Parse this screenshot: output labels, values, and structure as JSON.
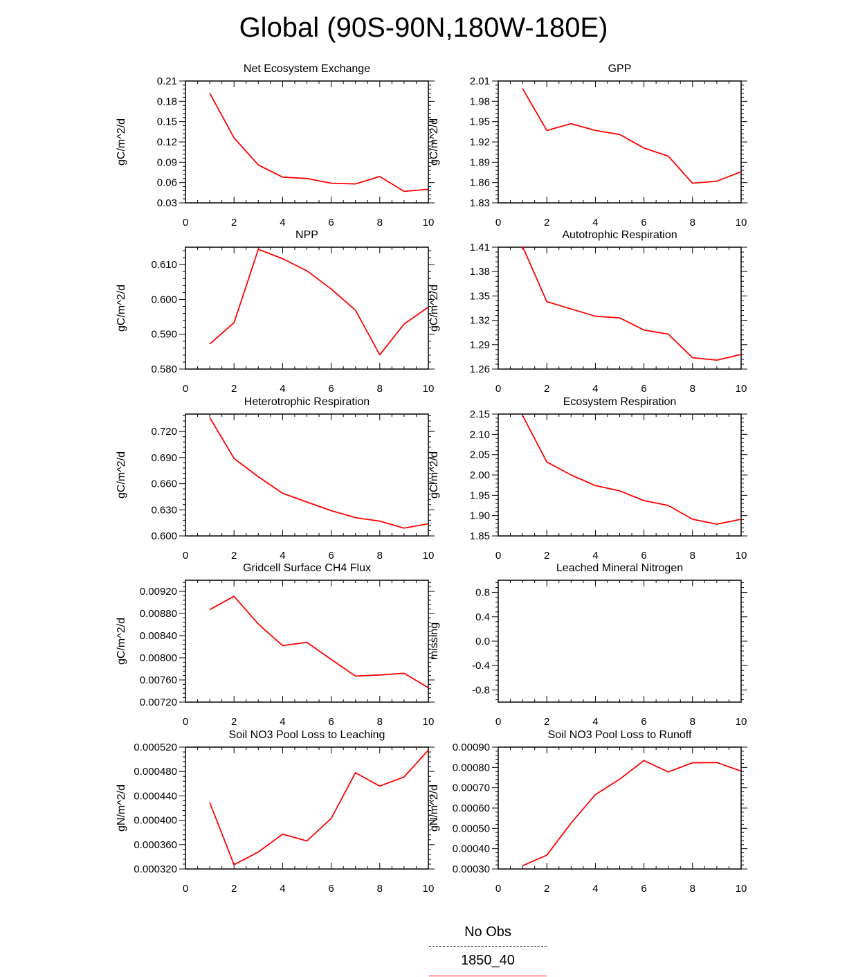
{
  "title": "Global (90S-90N,180W-180E)",
  "legend": {
    "entries": [
      {
        "label": "No Obs",
        "style": "dashed",
        "color": "#000000"
      },
      {
        "label": "1850_40",
        "style": "solid",
        "color": "#ff0000"
      }
    ]
  },
  "colors": {
    "series": "#ff0000",
    "axis": "#000000"
  },
  "chart_data": [
    {
      "type": "line",
      "title": "Net Ecosystem Exchange",
      "ylabel": "gC/m^2/d",
      "xlim": [
        0,
        10
      ],
      "xticks": [
        "0",
        "2",
        "4",
        "6",
        "8",
        "10"
      ],
      "ylim": [
        0.03,
        0.21
      ],
      "yticks": [
        "0.03",
        "0.06",
        "0.09",
        "0.12",
        "0.15",
        "0.18",
        "0.21"
      ],
      "x": [
        1,
        2,
        3,
        4,
        5,
        6,
        7,
        8,
        9,
        10
      ],
      "y": [
        0.192,
        0.126,
        0.086,
        0.068,
        0.066,
        0.059,
        0.058,
        0.069,
        0.047,
        0.05
      ]
    },
    {
      "type": "line",
      "title": "GPP",
      "ylabel": "gC/m^2/d",
      "xlim": [
        0,
        10
      ],
      "xticks": [
        "0",
        "2",
        "4",
        "6",
        "8",
        "10"
      ],
      "ylim": [
        1.83,
        2.01
      ],
      "yticks": [
        "1.83",
        "1.86",
        "1.89",
        "1.92",
        "1.95",
        "1.98",
        "2.01"
      ],
      "x": [
        1,
        2,
        3,
        4,
        5,
        6,
        7,
        8,
        9,
        10
      ],
      "y": [
        1.999,
        1.937,
        1.947,
        1.937,
        1.931,
        1.911,
        1.899,
        1.859,
        1.862,
        1.876
      ]
    },
    {
      "type": "line",
      "title": "NPP",
      "ylabel": "gC/m^2/d",
      "xlim": [
        0,
        10
      ],
      "xticks": [
        "0",
        "2",
        "4",
        "6",
        "8",
        "10"
      ],
      "ylim": [
        0.58,
        0.615
      ],
      "yticks": [
        "0.580",
        "0.590",
        "0.600",
        "0.610"
      ],
      "x": [
        1,
        2,
        3,
        4,
        5,
        6,
        7,
        8,
        9,
        10
      ],
      "y": [
        0.5872,
        0.5933,
        0.6144,
        0.6117,
        0.6082,
        0.603,
        0.5969,
        0.5841,
        0.5929,
        0.5978
      ]
    },
    {
      "type": "line",
      "title": "Autotrophic Respiration",
      "ylabel": "gC/m^2/d",
      "xlim": [
        0,
        10
      ],
      "xticks": [
        "0",
        "2",
        "4",
        "6",
        "8",
        "10"
      ],
      "ylim": [
        1.26,
        1.41
      ],
      "yticks": [
        "1.26",
        "1.29",
        "1.32",
        "1.35",
        "1.38",
        "1.41"
      ],
      "x": [
        1,
        2,
        3,
        4,
        5,
        6,
        7,
        8,
        9,
        10
      ],
      "y": [
        1.411,
        1.343,
        1.334,
        1.325,
        1.323,
        1.308,
        1.303,
        1.274,
        1.271,
        1.278
      ]
    },
    {
      "type": "line",
      "title": "Heterotrophic Respiration",
      "ylabel": "gC/m^2/d",
      "xlim": [
        0,
        10
      ],
      "xticks": [
        "0",
        "2",
        "4",
        "6",
        "8",
        "10"
      ],
      "ylim": [
        0.6,
        0.74
      ],
      "yticks": [
        "0.600",
        "0.630",
        "0.660",
        "0.690",
        "0.720"
      ],
      "x": [
        1,
        2,
        3,
        4,
        5,
        6,
        7,
        8,
        9,
        10
      ],
      "y": [
        0.736,
        0.689,
        0.668,
        0.649,
        0.639,
        0.629,
        0.621,
        0.617,
        0.609,
        0.614
      ]
    },
    {
      "type": "line",
      "title": "Ecosystem Respiration",
      "ylabel": "gC/m^2/d",
      "xlim": [
        0,
        10
      ],
      "xticks": [
        "0",
        "2",
        "4",
        "6",
        "8",
        "10"
      ],
      "ylim": [
        1.85,
        2.15
      ],
      "yticks": [
        "1.85",
        "1.90",
        "1.95",
        "2.00",
        "2.05",
        "2.10",
        "2.15"
      ],
      "x": [
        1,
        2,
        3,
        4,
        5,
        6,
        7,
        8,
        9,
        10
      ],
      "y": [
        2.147,
        2.032,
        2.0,
        1.974,
        1.961,
        1.937,
        1.925,
        1.891,
        1.879,
        1.891
      ]
    },
    {
      "type": "line",
      "title": "Gridcell Surface CH4 Flux",
      "ylabel": "gC/m^2/d",
      "xlim": [
        0,
        10
      ],
      "xticks": [
        "0",
        "2",
        "4",
        "6",
        "8",
        "10"
      ],
      "ylim": [
        0.0072,
        0.0094
      ],
      "yticks": [
        "0.00720",
        "0.00760",
        "0.00800",
        "0.00840",
        "0.00880",
        "0.00920"
      ],
      "x": [
        1,
        2,
        3,
        4,
        5,
        6,
        7,
        8,
        9,
        10
      ],
      "y": [
        0.00887,
        0.00911,
        0.00861,
        0.00822,
        0.00828,
        0.00797,
        0.00767,
        0.00769,
        0.00772,
        0.00746
      ]
    },
    {
      "type": "line",
      "title": "Leached Mineral Nitrogen",
      "ylabel": "missing",
      "xlim": [
        0,
        10
      ],
      "xticks": [
        "0",
        "2",
        "4",
        "6",
        "8",
        "10"
      ],
      "ylim": [
        -1.0,
        1.0
      ],
      "yticks": [
        "-0.8",
        "-0.4",
        "0.0",
        "0.4",
        "0.8"
      ],
      "ytick_values": [
        -0.8,
        -0.4,
        0.0,
        0.4,
        0.8
      ],
      "x": [],
      "y": []
    },
    {
      "type": "line",
      "title": "Soil NO3 Pool Loss to Leaching",
      "ylabel": "gN/m^2/d",
      "xlim": [
        0,
        10
      ],
      "xticks": [
        "0",
        "2",
        "4",
        "6",
        "8",
        "10"
      ],
      "ylim": [
        0.00032,
        0.00052
      ],
      "yticks": [
        "0.000320",
        "0.000360",
        "0.000400",
        "0.000440",
        "0.000480",
        "0.000520"
      ],
      "x": [
        1,
        2,
        3,
        4,
        5,
        6,
        7,
        8,
        9,
        10
      ],
      "y": [
        0.000429,
        0.000327,
        0.000348,
        0.000377,
        0.000366,
        0.000403,
        0.000478,
        0.000456,
        0.000471,
        0.000515
      ]
    },
    {
      "type": "line",
      "title": "Soil NO3 Pool Loss to Runoff",
      "ylabel": "gN/m^2/d",
      "xlim": [
        0,
        10
      ],
      "xticks": [
        "0",
        "2",
        "4",
        "6",
        "8",
        "10"
      ],
      "ylim": [
        0.0003,
        0.0009
      ],
      "yticks": [
        "0.00030",
        "0.00040",
        "0.00050",
        "0.00060",
        "0.00070",
        "0.00080",
        "0.00090"
      ],
      "x": [
        1,
        2,
        3,
        4,
        5,
        6,
        7,
        8,
        9,
        10
      ],
      "y": [
        0.000316,
        0.000368,
        0.000526,
        0.000666,
        0.000742,
        0.000834,
        0.000778,
        0.000823,
        0.000824,
        0.000782
      ]
    }
  ]
}
